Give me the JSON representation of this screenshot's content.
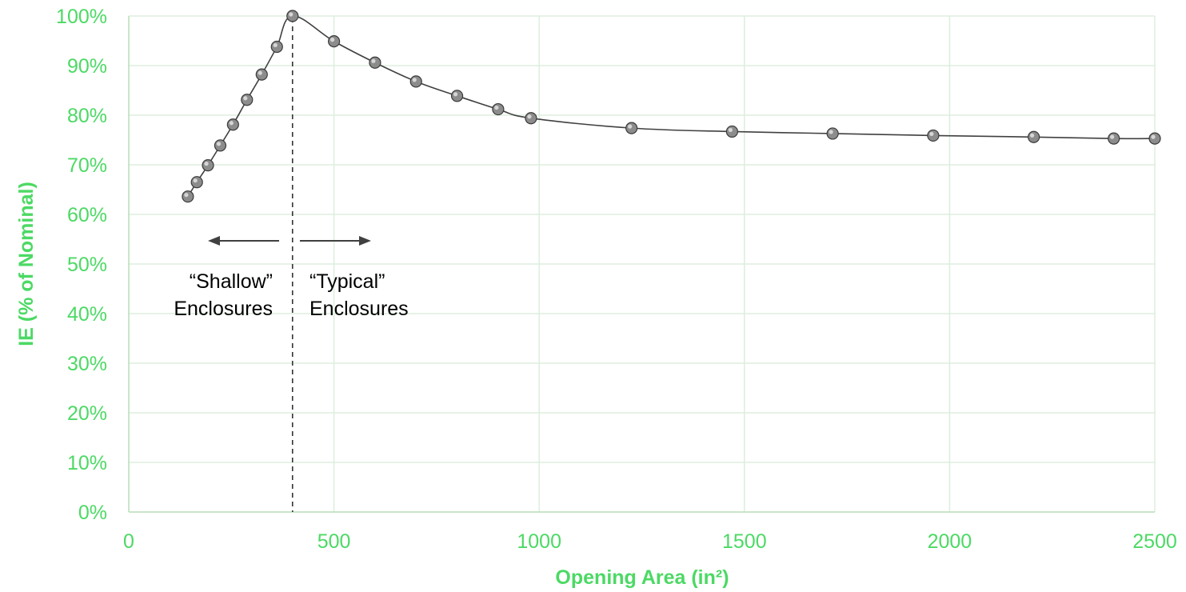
{
  "colors": {
    "axis_text": "#4CD964",
    "grid": "#DDEEDD",
    "axis_line": "#B7DEB7",
    "series_line": "#404040",
    "marker_fill": "#8C8C8C",
    "marker_stroke": "#3A3A3A",
    "annotation": "#404040"
  },
  "chart_data": {
    "type": "scatter",
    "xlabel": "Opening Area (in²)",
    "ylabel": "IE (% of Nominal)",
    "xlim": [
      0,
      2500
    ],
    "ylim": [
      0,
      100
    ],
    "x_ticks": [
      "0",
      "500",
      "1000",
      "1500",
      "2000",
      "2500"
    ],
    "x_tick_values": [
      0,
      500,
      1000,
      1500,
      2000,
      2500
    ],
    "y_ticks": [
      "0%",
      "10%",
      "20%",
      "30%",
      "40%",
      "50%",
      "60%",
      "70%",
      "80%",
      "90%",
      "100%"
    ],
    "y_tick_values": [
      0,
      10,
      20,
      30,
      40,
      50,
      60,
      70,
      80,
      90,
      100
    ],
    "grid": true,
    "series": [
      {
        "line": "smooth",
        "points": [
          [
            144,
            63.6
          ],
          [
            166,
            66.5
          ],
          [
            193,
            69.9
          ],
          [
            223,
            73.9
          ],
          [
            254,
            78.1
          ],
          [
            288,
            83.1
          ],
          [
            324,
            88.2
          ],
          [
            361,
            93.8
          ],
          [
            399,
            100
          ],
          [
            500,
            94.9
          ],
          [
            600,
            90.6
          ],
          [
            700,
            86.8
          ],
          [
            800,
            83.9
          ],
          [
            900,
            81.2
          ],
          [
            980,
            79.4
          ],
          [
            1225,
            77.4
          ],
          [
            1470,
            76.7
          ],
          [
            1715,
            76.3
          ],
          [
            1960,
            75.9
          ],
          [
            2205,
            75.6
          ],
          [
            2400,
            75.3
          ],
          [
            2500,
            75.3
          ]
        ]
      }
    ],
    "reference_line": {
      "x": 399,
      "style": "dashed"
    },
    "annotations": {
      "left_line1": "“Shallow”",
      "left_line2": "Enclosures",
      "right_line1": "“Typical”",
      "right_line2": "Enclosures",
      "left_arrow": "arrow-left",
      "right_arrow": "arrow-right"
    }
  }
}
